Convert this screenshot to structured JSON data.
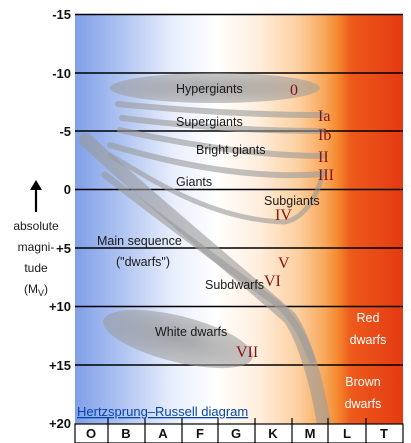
{
  "title": "Hertzsprung–Russell diagram",
  "y_axis": {
    "label_lines": [
      "absolute",
      "magni-",
      "tude"
    ],
    "unit_base": "(M",
    "unit_sub": "V",
    "unit_close": ")",
    "ticks": [
      "-15",
      "-10",
      "-5",
      "0",
      "+5",
      "+10",
      "+15",
      "+20"
    ]
  },
  "x_axis": {
    "ticks": [
      "O",
      "B",
      "A",
      "F",
      "G",
      "K",
      "M",
      "L",
      "T"
    ]
  },
  "regions": {
    "hypergiants": "Hypergiants",
    "supergiants": "Supergiants",
    "bright_giants": "Bright giants",
    "giants": "Giants",
    "subgiants": "Subgiants",
    "main_sequence": "Main sequence",
    "dwarfs": "(\"dwarfs\")",
    "subdwarfs": "Subdwarfs",
    "white_dwarfs": "White dwarfs",
    "red_dwarfs_1": "Red",
    "red_dwarfs_2": "dwarfs",
    "brown_dwarfs_1": "Brown",
    "brown_dwarfs_2": "dwarfs"
  },
  "luminosity_classes": {
    "c0": "0",
    "c1a": "Ia",
    "c1b": "Ib",
    "c2": "II",
    "c3": "III",
    "c4": "IV",
    "c5": "V",
    "c6": "VI",
    "c7": "VII"
  },
  "colors": {
    "hot_blue": "#7f9fe6",
    "mid_white": "#ffffff",
    "cool_orange": "#f79a3a",
    "red": "#e23a12",
    "class_label": "#8b1010",
    "title_link": "#0645ad"
  }
}
